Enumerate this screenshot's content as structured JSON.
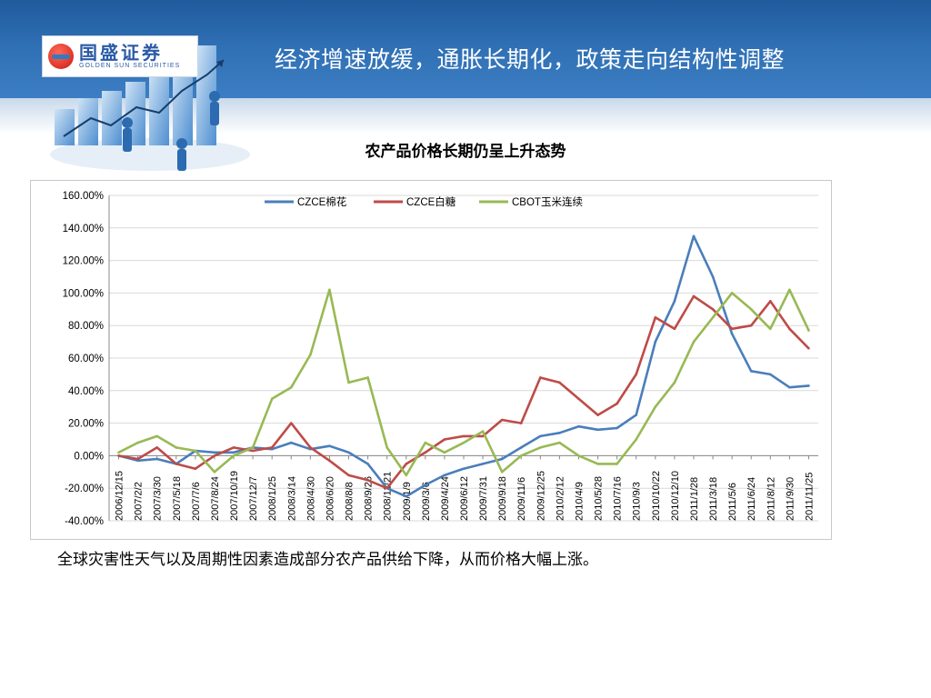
{
  "header": {
    "title": "经济增速放缓，通胀长期化，政策走向结构性调整",
    "logo_cn": "国盛证券",
    "logo_en": "GOLDEN SUN SECURITIES",
    "logo_icon": "golden-sun-logo-icon",
    "decor_icon": "bar-chart-business-people-icon",
    "colors": {
      "header_bg": "#2f6fb4",
      "cotton": "#4a7ebb",
      "sugar": "#be4b48",
      "corn": "#98b954"
    }
  },
  "chart_title": "农产品价格长期仍呈上升态势",
  "caption": "全球灾害性天气以及周期性因素造成部分农产品供给下降，从而价格大幅上涨。",
  "chart_data": {
    "type": "line",
    "title": "农产品价格长期仍呈上升态势",
    "legend_position": "top",
    "grid": true,
    "ylim": [
      -0.4,
      1.6
    ],
    "yticks": [
      "160.00%",
      "140.00%",
      "120.00%",
      "100.00%",
      "80.00%",
      "60.00%",
      "40.00%",
      "20.00%",
      "0.00%",
      "-20.00%",
      "-40.00%"
    ],
    "x_labels": [
      "2006/12/15",
      "2007/2/2",
      "2007/3/30",
      "2007/5/18",
      "2007/7/6",
      "2007/8/24",
      "2007/10/19",
      "2007/12/7",
      "2008/1/25",
      "2008/3/14",
      "2008/4/30",
      "2008/6/20",
      "2008/8/8",
      "2008/9/26",
      "2008/11/21",
      "2009/1/9",
      "2009/3/6",
      "2009/4/24",
      "2009/6/12",
      "2009/7/31",
      "2009/9/18",
      "2009/11/6",
      "2009/12/25",
      "2010/2/12",
      "2010/4/9",
      "2010/5/28",
      "2010/7/16",
      "2010/9/3",
      "2010/10/22",
      "2010/12/10",
      "2011/1/28",
      "2011/3/18",
      "2011/5/6",
      "2011/6/24",
      "2011/8/12",
      "2011/9/30",
      "2011/11/25"
    ],
    "series": [
      {
        "name": "CZCE棉花",
        "color": "#4a7ebb",
        "values": [
          0.0,
          -0.03,
          -0.02,
          -0.05,
          0.03,
          0.02,
          0.02,
          0.05,
          0.04,
          0.08,
          0.04,
          0.06,
          0.02,
          -0.05,
          -0.2,
          -0.25,
          -0.18,
          -0.12,
          -0.08,
          -0.05,
          -0.02,
          0.05,
          0.12,
          0.14,
          0.18,
          0.16,
          0.17,
          0.25,
          0.7,
          0.95,
          1.35,
          1.1,
          0.75,
          0.52,
          0.5,
          0.42,
          0.43
        ]
      },
      {
        "name": "CZCE白糖",
        "color": "#be4b48",
        "values": [
          0.0,
          -0.02,
          0.05,
          -0.05,
          -0.08,
          0.0,
          0.05,
          0.03,
          0.05,
          0.2,
          0.05,
          -0.03,
          -0.12,
          -0.15,
          -0.2,
          -0.05,
          0.02,
          0.1,
          0.12,
          0.12,
          0.22,
          0.2,
          0.48,
          0.45,
          0.35,
          0.25,
          0.32,
          0.5,
          0.85,
          0.78,
          0.98,
          0.9,
          0.78,
          0.8,
          0.95,
          0.78,
          0.66
        ]
      },
      {
        "name": "CBOT玉米连续",
        "color": "#98b954",
        "values": [
          0.02,
          0.08,
          0.12,
          0.05,
          0.03,
          -0.1,
          0.0,
          0.05,
          0.35,
          0.42,
          0.62,
          1.02,
          0.45,
          0.48,
          0.05,
          -0.12,
          0.08,
          0.02,
          0.08,
          0.15,
          -0.1,
          0.0,
          0.05,
          0.08,
          0.0,
          -0.05,
          -0.05,
          0.1,
          0.3,
          0.45,
          0.7,
          0.85,
          1.0,
          0.9,
          0.78,
          1.02,
          0.77
        ]
      }
    ]
  }
}
